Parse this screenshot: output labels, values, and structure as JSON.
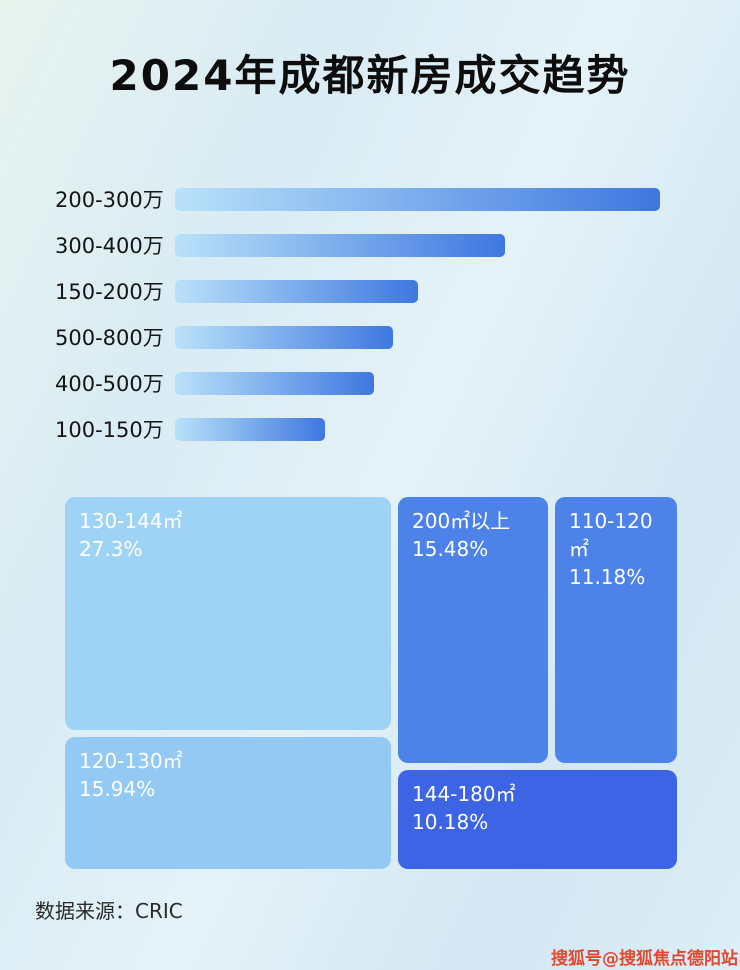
{
  "page": {
    "title": "2024年成都新房成交趋势"
  },
  "chart_data": [
    {
      "type": "bar",
      "orientation": "horizontal",
      "title": "2024年成都新房成交趋势",
      "categories": [
        "200-300万",
        "300-400万",
        "150-200万",
        "500-800万",
        "400-500万",
        "100-150万"
      ],
      "values": [
        100,
        68,
        50,
        45,
        41,
        31
      ],
      "values_note": "relative bar lengths estimated from pixels; no numeric data labels are shown in the image",
      "bar_gradient": [
        "#b9e2f9",
        "#3e77e0"
      ],
      "legend": "none",
      "grid": false
    },
    {
      "type": "treemap",
      "items": [
        {
          "label": "130-144㎡",
          "percent": "27.3%",
          "color": "#9fd3f6"
        },
        {
          "label": "120-130㎡",
          "percent": "15.94%",
          "color": "#93c9f3"
        },
        {
          "label": "200㎡以上",
          "percent": "15.48%",
          "color": "#4d82e8"
        },
        {
          "label": "110-120㎡",
          "percent": "11.18%",
          "color": "#4d82e8"
        },
        {
          "label": "144-180㎡",
          "percent": "10.18%",
          "color": "#3c64e4"
        }
      ]
    }
  ],
  "footer": {
    "source": "数据来源：CRIC",
    "watermark": "搜狐号@搜狐焦点德阳站"
  }
}
